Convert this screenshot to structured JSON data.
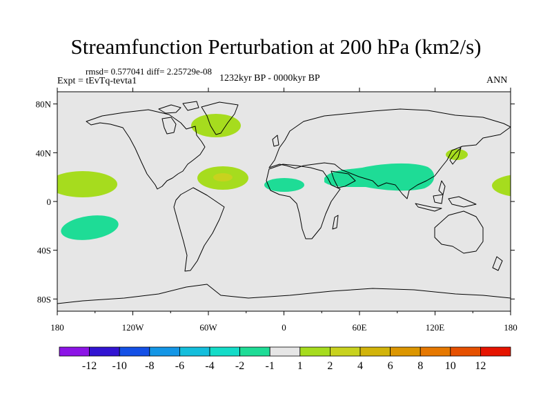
{
  "title": "Streamfunction Perturbation at 200 hPa (km2/s)",
  "stats_line": "rmsd= 0.577041 diff= 2.25729e-08",
  "experiment_label": "Expt = tEvTq-tevta1",
  "period_label": "1232kyr BP - 0000kyr BP",
  "season_label": "ANN",
  "map": {
    "projection": "cylindrical equidistant",
    "background_color": "#e6e6e6",
    "coastline_color": "#000000",
    "lon_ticks": [
      "180",
      "120W",
      "60W",
      "0",
      "60E",
      "120E",
      "180"
    ],
    "lat_ticks": [
      "80N",
      "40N",
      "0",
      "40S",
      "80S"
    ],
    "anomalies": [
      {
        "name": "north-pacific-positive",
        "level": "1 to 2",
        "color": "#a6dc1e"
      },
      {
        "name": "south-pacific-negative",
        "level": "-2 to -1",
        "color": "#1edc96"
      },
      {
        "name": "greenland-positive",
        "level": "1 to 2",
        "color": "#a6dc1e"
      },
      {
        "name": "north-atlantic-positive",
        "level": "1 to 2",
        "color": "#a6dc1e"
      },
      {
        "name": "north-atlantic-core",
        "level": "2 to 4",
        "color": "#c8d21e"
      },
      {
        "name": "west-africa-negative",
        "level": "-2 to -1",
        "color": "#1edc96"
      },
      {
        "name": "asia-monsoon-negative",
        "level": "-2 to -1",
        "color": "#1edc96"
      },
      {
        "name": "japan-positive",
        "level": "1 to 2",
        "color": "#a6dc1e"
      },
      {
        "name": "east-pacific-positive",
        "level": "1 to 2",
        "color": "#a6dc1e"
      }
    ]
  },
  "colorbar": {
    "colors": [
      "#8c14e6",
      "#3214d2",
      "#1450e6",
      "#1496e6",
      "#14bedc",
      "#14dcc8",
      "#1edc96",
      "#e6e6e6",
      "#a6dc1e",
      "#c8d21e",
      "#d2b40a",
      "#dc9600",
      "#e67800",
      "#e65000",
      "#e61400"
    ],
    "labels": [
      "-12",
      "-10",
      "-8",
      "-6",
      "-4",
      "-2",
      "-1",
      "1",
      "2",
      "4",
      "6",
      "8",
      "10",
      "12"
    ]
  }
}
